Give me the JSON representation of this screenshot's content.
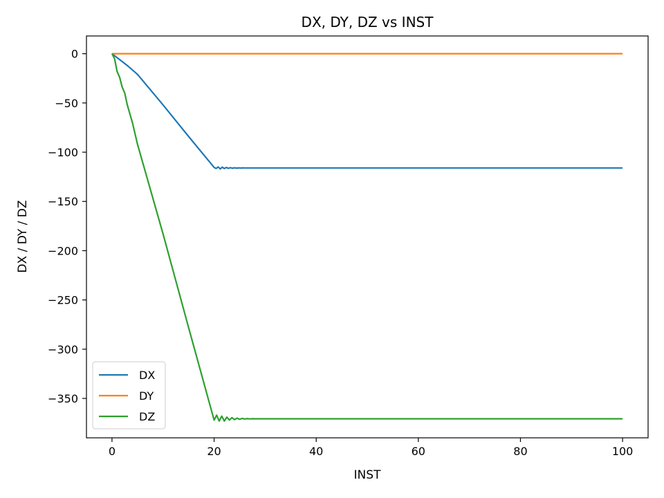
{
  "chart_data": {
    "type": "line",
    "title": "DX, DY, DZ vs INST",
    "xlabel": "INST",
    "ylabel": "DX / DY / DZ",
    "xlim": [
      -5,
      105
    ],
    "ylim": [
      -390,
      18
    ],
    "xticks": [
      0,
      20,
      40,
      60,
      80,
      100
    ],
    "yticks": [
      0,
      -50,
      -100,
      -150,
      -200,
      -250,
      -300,
      -350
    ],
    "xtick_labels": [
      "0",
      "20",
      "40",
      "60",
      "80",
      "100"
    ],
    "ytick_labels": [
      "0",
      "−50",
      "−100",
      "−150",
      "−200",
      "−250",
      "−300",
      "−350"
    ],
    "grid": false,
    "legend_position": "lower-left",
    "series": [
      {
        "name": "DX",
        "color": "#1f77b4",
        "x": [
          0,
          0.5,
          1,
          2,
          3,
          5,
          10,
          15,
          20,
          20.4,
          20.8,
          21.2,
          21.6,
          22.0,
          22.4,
          22.8,
          23.2,
          23.6,
          24.0,
          24.4,
          24.8,
          25.2,
          25.6,
          26,
          27,
          28,
          30,
          40,
          60,
          80,
          100
        ],
        "y": [
          0,
          -2,
          -4,
          -8,
          -12,
          -21,
          -52,
          -84,
          -115.5,
          -116.5,
          -115.0,
          -117.0,
          -115.2,
          -116.6,
          -115.5,
          -116.4,
          -115.7,
          -116.3,
          -115.8,
          -116.2,
          -115.9,
          -116.1,
          -115.95,
          -116,
          -116,
          -116,
          -116,
          -116,
          -116,
          -116,
          -116
        ]
      },
      {
        "name": "DY",
        "color": "#ff7f0e",
        "x": [
          0,
          20,
          40,
          60,
          80,
          100
        ],
        "y": [
          0,
          0,
          0,
          0,
          0,
          0
        ]
      },
      {
        "name": "DZ",
        "color": "#2ca02c",
        "x": [
          0,
          0.5,
          1,
          1.5,
          2,
          2.5,
          3,
          4,
          5,
          10,
          15,
          20,
          20.5,
          21.0,
          21.5,
          22.0,
          22.5,
          23.0,
          23.5,
          24.0,
          24.5,
          25.0,
          25.5,
          26.0,
          26.5,
          27.0,
          27.5,
          28,
          29,
          30,
          40,
          60,
          80,
          100
        ],
        "y": [
          0,
          -5,
          -18,
          -24,
          -34,
          -40,
          -52,
          -70,
          -92,
          -183,
          -278,
          -372,
          -367,
          -373,
          -368,
          -373,
          -369,
          -372,
          -369.5,
          -371.5,
          -370,
          -371.2,
          -370.3,
          -370.9,
          -370.5,
          -370.8,
          -370.6,
          -370.7,
          -370.7,
          -370.7,
          -370.7,
          -370.7,
          -370.7,
          -370.7
        ]
      }
    ]
  }
}
